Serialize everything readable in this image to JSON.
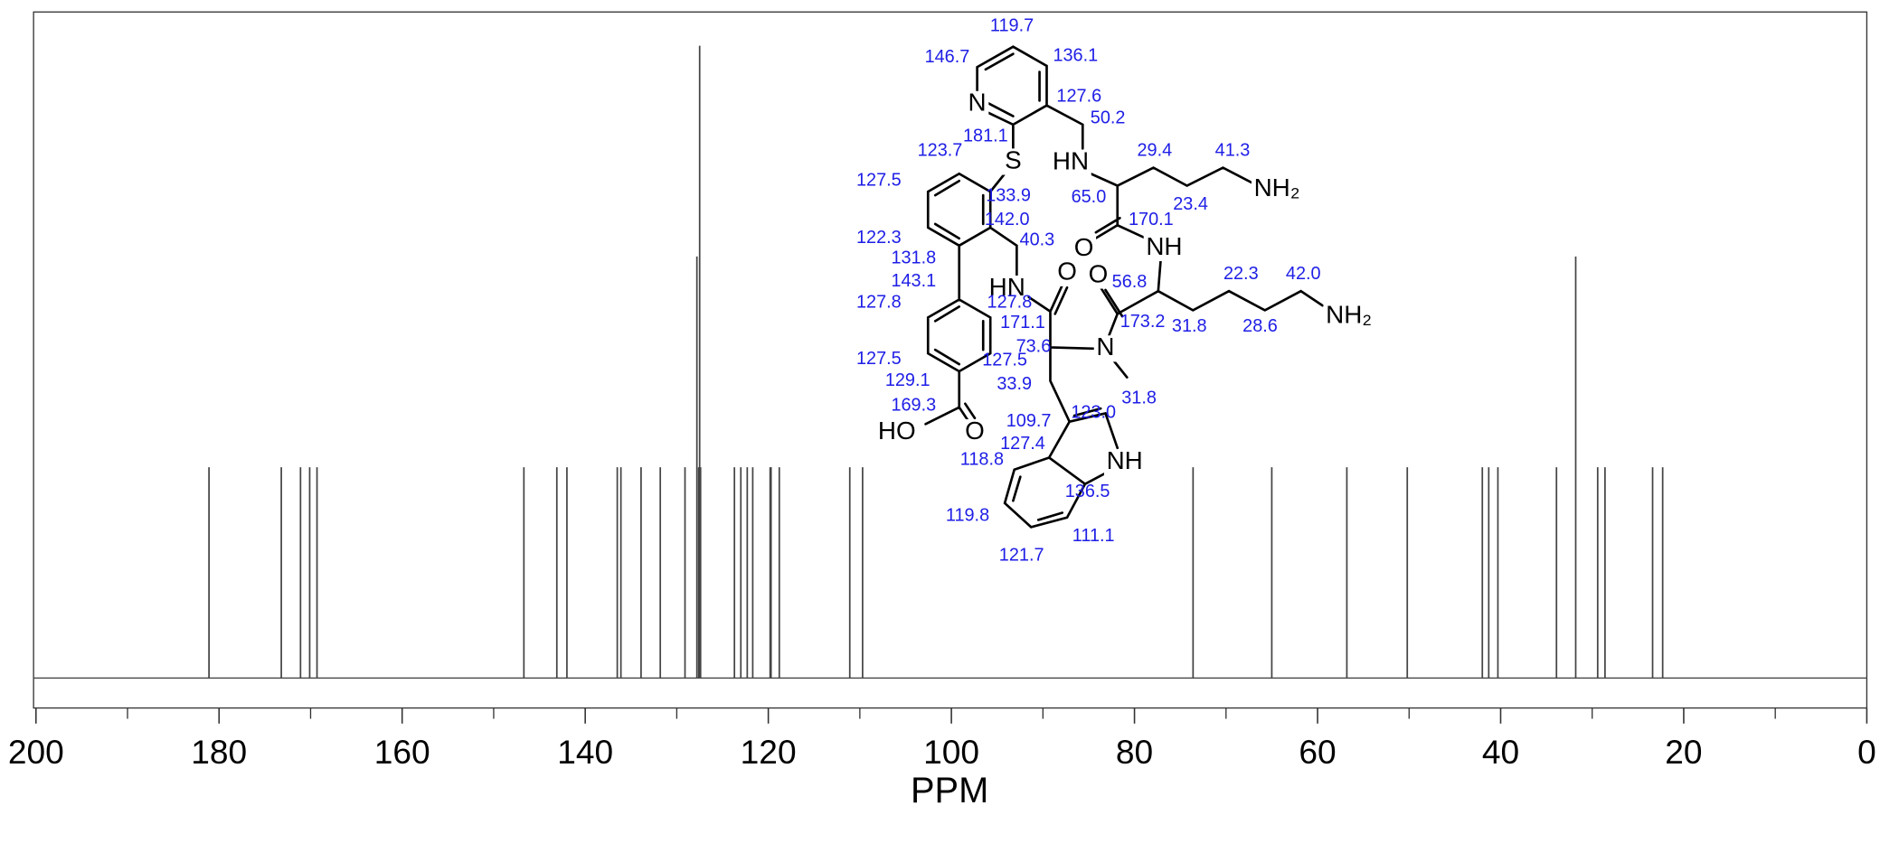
{
  "chart_data": {
    "type": "spectrum",
    "xlabel": "PPM",
    "x": [
      181.1,
      173.2,
      171.1,
      170.1,
      169.3,
      146.7,
      143.1,
      142.0,
      136.5,
      136.1,
      133.9,
      131.8,
      129.1,
      127.8,
      127.6,
      127.5,
      127.4,
      123.7,
      123.0,
      122.3,
      121.7,
      119.8,
      119.7,
      118.8,
      111.1,
      109.7,
      73.6,
      65.0,
      56.8,
      50.2,
      42.0,
      41.3,
      40.3,
      33.9,
      31.8,
      29.4,
      28.6,
      23.4,
      22.3
    ],
    "values": [
      1,
      1,
      1,
      1,
      1,
      1,
      1,
      1,
      1,
      1,
      1,
      1,
      1,
      2,
      1,
      3,
      1,
      1,
      1,
      1,
      1,
      1,
      1,
      1,
      1,
      1,
      1,
      1,
      1,
      1,
      1,
      1,
      1,
      1,
      2,
      1,
      1,
      1,
      1
    ],
    "color": "#444444",
    "xlim": [
      200,
      0
    ],
    "ylim": [
      0,
      3.16
    ],
    "xticks": [
      200,
      180,
      160,
      140,
      120,
      100,
      80,
      60,
      40,
      20,
      0
    ],
    "xminorticks": [
      190,
      170,
      150,
      130,
      110,
      90,
      70,
      50,
      30,
      10
    ],
    "structure": {
      "shift_labels": [
        "119.7",
        "146.7",
        "136.1",
        "127.6",
        "181.1",
        "50.2",
        "123.7",
        "29.4",
        "41.3",
        "127.5",
        "133.9",
        "65.0",
        "23.4",
        "142.0",
        "170.1",
        "122.3",
        "40.3",
        "131.8",
        "22.3",
        "42.0",
        "143.1",
        "56.8",
        "127.8",
        "127.8",
        "171.1",
        "173.2",
        "31.8",
        "28.6",
        "73.6",
        "127.5",
        "127.5",
        "129.1",
        "33.9",
        "31.8",
        "169.3",
        "109.7",
        "123.0",
        "127.4",
        "118.8",
        "136.5",
        "119.8",
        "111.1",
        "121.7"
      ],
      "atom_labels": [
        "N",
        "S",
        "HN",
        "NH₂",
        "O",
        "NH",
        "O",
        "HN",
        "O",
        "NH₂",
        "N",
        "HO",
        "O",
        "NH"
      ]
    }
  }
}
